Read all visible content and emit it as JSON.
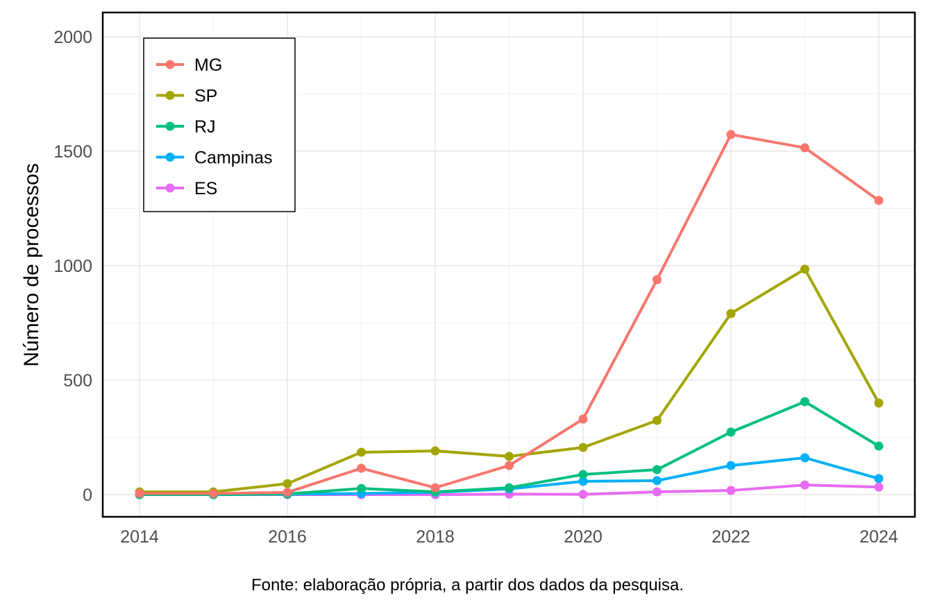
{
  "chart_data": {
    "type": "line",
    "title": "",
    "xlabel": "",
    "ylabel": "Número de processos",
    "x": [
      2014,
      2015,
      2016,
      2017,
      2018,
      2019,
      2020,
      2021,
      2022,
      2023,
      2024
    ],
    "xticks": [
      "2014",
      "2016",
      "2018",
      "2020",
      "2022",
      "2024"
    ],
    "yticks": [
      "0",
      "500",
      "1000",
      "1500",
      "2000"
    ],
    "xlim": [
      2013.5,
      2024.5
    ],
    "ylim": [
      -95,
      2100
    ],
    "grid": true,
    "legend_position": "top-left",
    "series": [
      {
        "name": "MG",
        "color": "#F8766D",
        "values": [
          5,
          5,
          10,
          115,
          30,
          127,
          330,
          939,
          1573,
          1515,
          1285
        ]
      },
      {
        "name": "SP",
        "color": "#A3A500",
        "values": [
          12,
          12,
          48,
          185,
          191,
          167,
          206,
          324,
          791,
          985,
          400
        ]
      },
      {
        "name": "RJ",
        "color": "#00BF7D",
        "values": [
          0,
          0,
          3,
          27,
          12,
          30,
          88,
          109,
          273,
          406,
          212
        ]
      },
      {
        "name": "Campinas",
        "color": "#00B0F6",
        "values": [
          0,
          0,
          2,
          5,
          10,
          25,
          58,
          61,
          127,
          161,
          70
        ]
      },
      {
        "name": "ES",
        "color": "#E76BF3",
        "values": [
          0,
          0,
          0,
          0,
          0,
          2,
          1,
          12,
          18,
          42,
          33
        ]
      }
    ]
  },
  "caption": "Fonte: elaboração própria, a partir dos dados da pesquisa."
}
